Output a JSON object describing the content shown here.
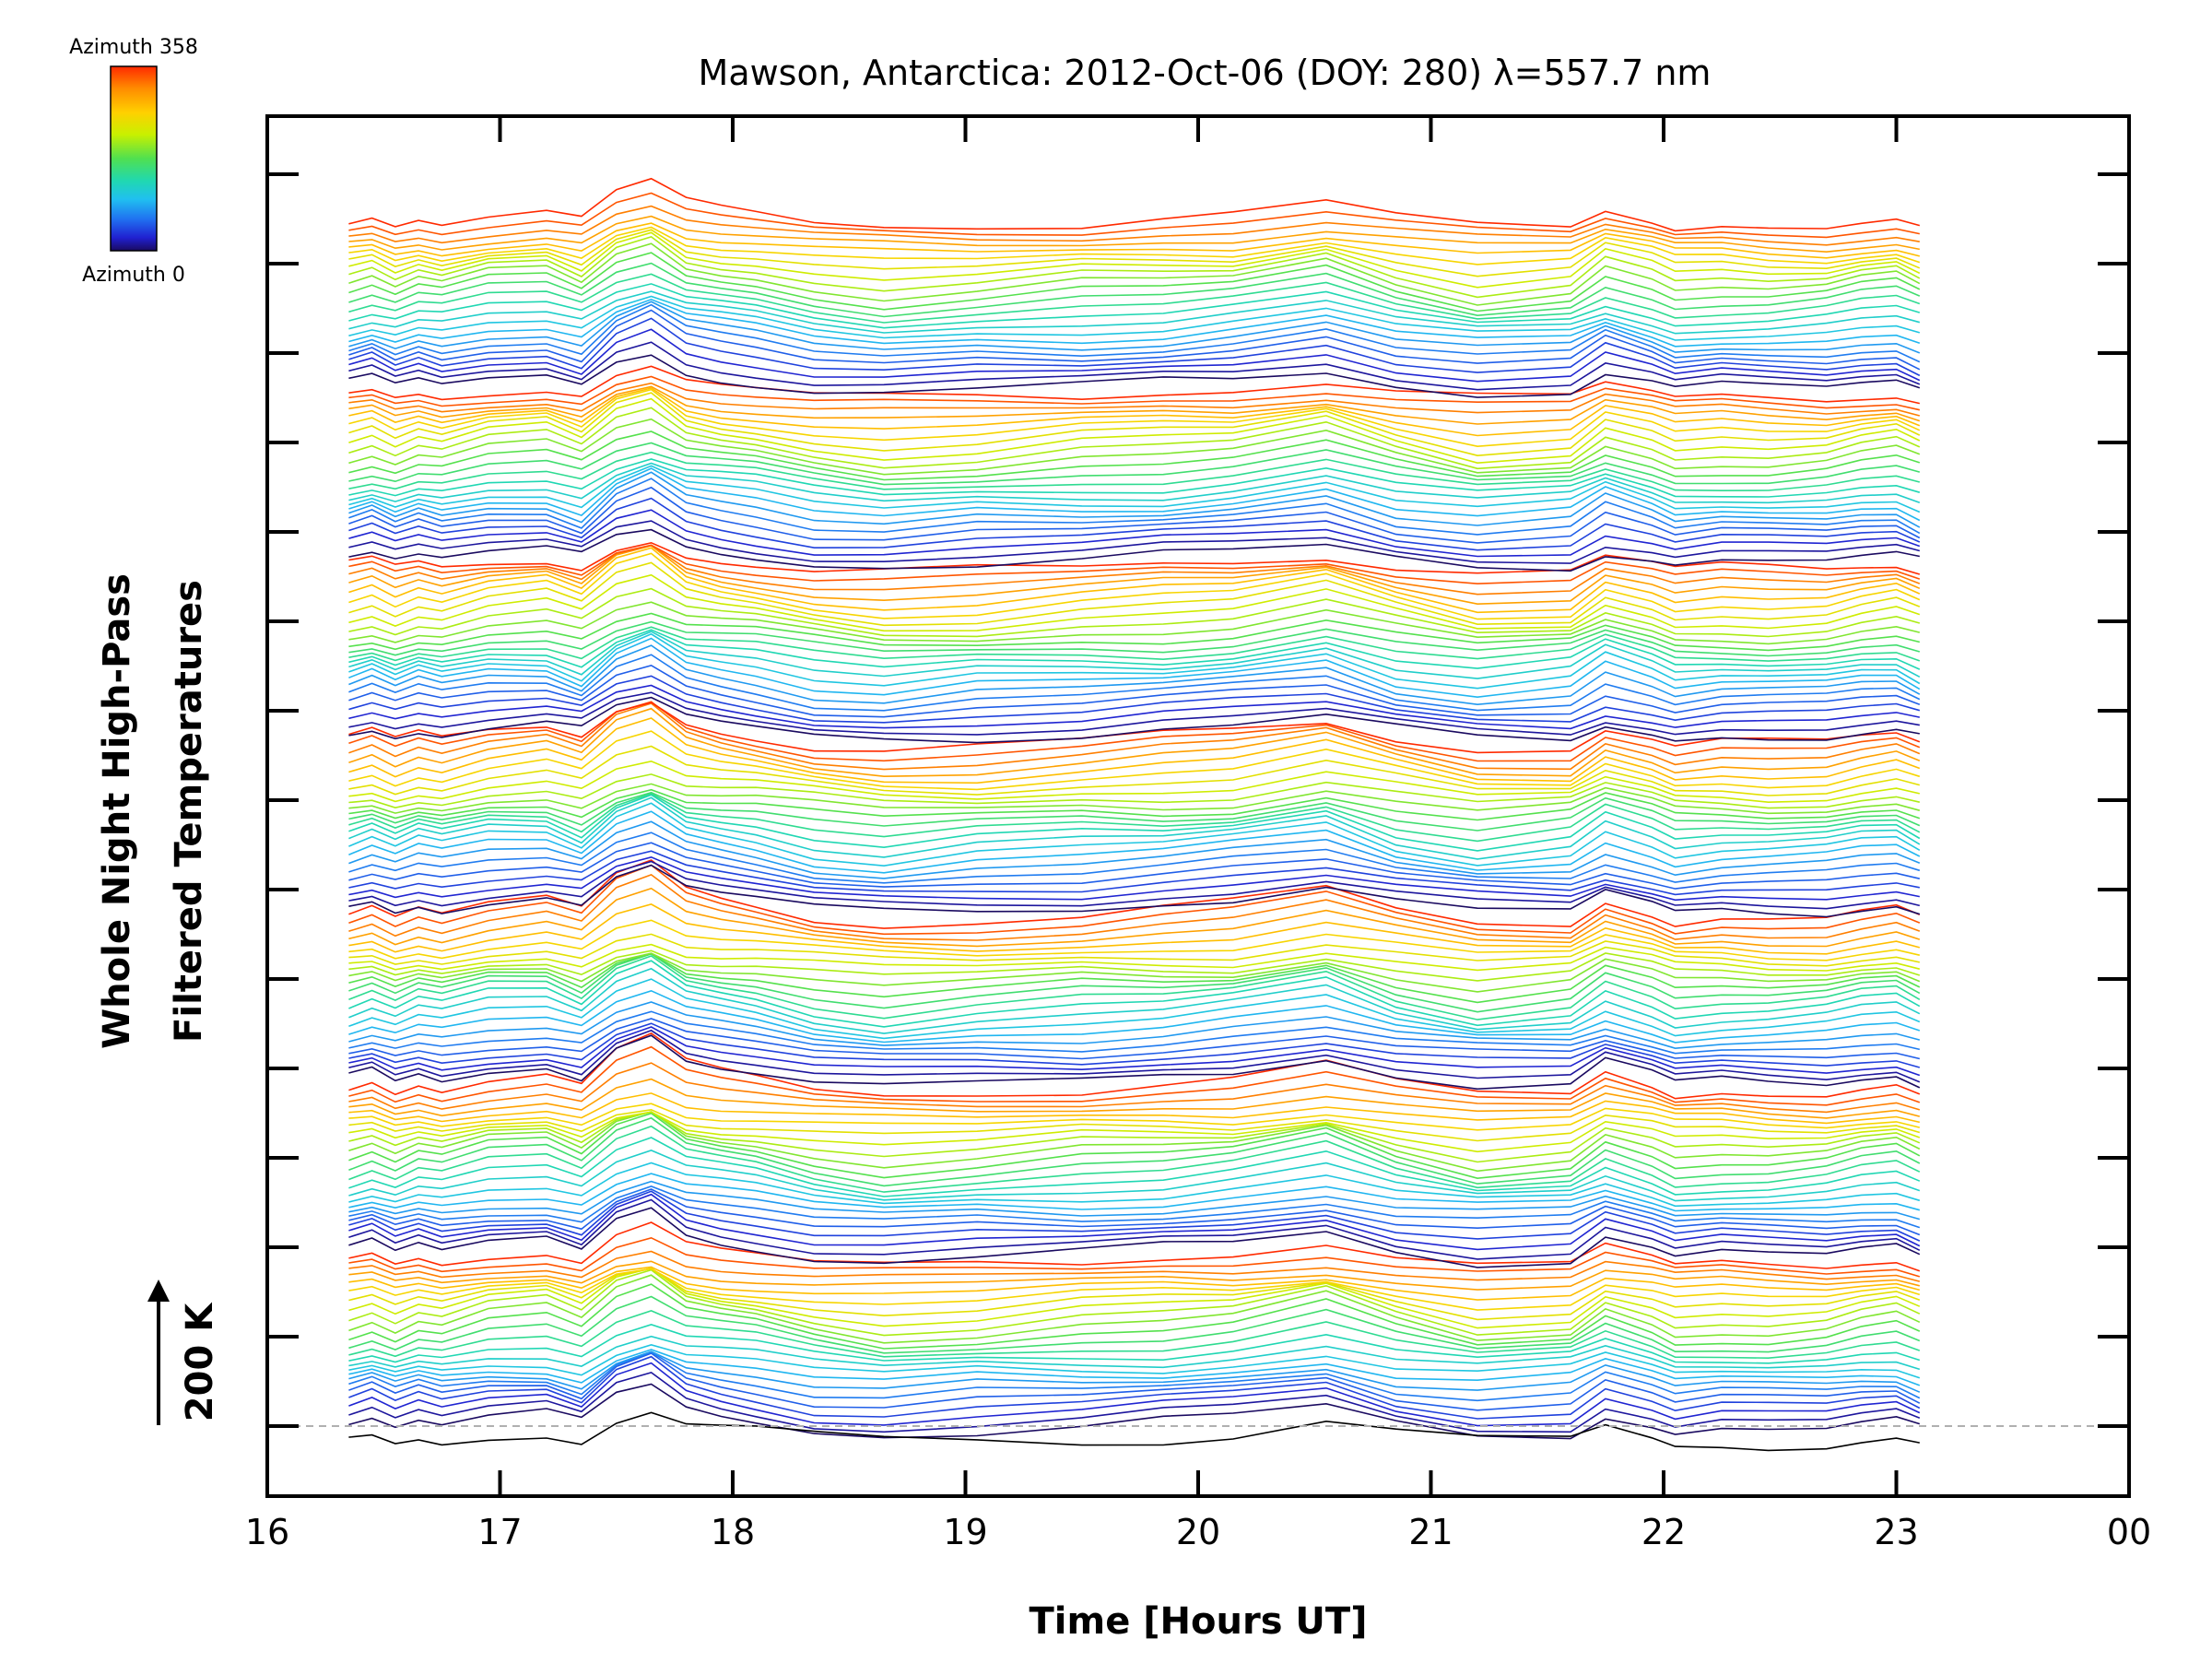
{
  "chart_data": {
    "type": "line",
    "title": "Mawson, Antarctica: 2012-Oct-06 (DOY: 280) λ=557.7 nm",
    "xlabel": "Time [Hours UT]",
    "ylabel_line1": "Whole Night High-Pass",
    "ylabel_line2": "Filtered Temperatures",
    "xlim": [
      16,
      24
    ],
    "x_ticks": [
      "16",
      "17",
      "18",
      "19",
      "20",
      "21",
      "22",
      "23",
      "00"
    ],
    "scale_bar_label": "200 K",
    "colorbar": {
      "top_label": "Azimuth 358",
      "bottom_label": "Azimuth 0",
      "colors": [
        "#ff2a00",
        "#ff8c00",
        "#ffd000",
        "#c8f000",
        "#50e050",
        "#20d8b0",
        "#20c0f0",
        "#2070f0",
        "#2020d0",
        "#1a0a60"
      ]
    },
    "times": [
      16.35,
      16.45,
      16.55,
      16.65,
      16.75,
      16.95,
      17.2,
      17.35,
      17.5,
      17.65,
      17.8,
      17.95,
      18.1,
      18.35,
      18.65,
      19.05,
      19.5,
      19.85,
      20.15,
      20.55,
      20.85,
      21.2,
      21.6,
      21.75,
      21.95,
      22.05,
      22.25,
      22.45,
      22.7,
      22.85,
      23.0,
      23.1
    ],
    "group_count": 7,
    "lines_per_group": 24,
    "bottom_reference_line": "dashed-gray",
    "series_profile_base_K": [
      0,
      4,
      -2,
      3,
      0,
      6,
      8,
      1,
      18,
      25,
      12,
      8,
      5,
      -2,
      -6,
      -3,
      0,
      2,
      5,
      14,
      2,
      -6,
      -3,
      10,
      2,
      -4,
      -2,
      -3,
      -2,
      2,
      4,
      -2
    ]
  }
}
